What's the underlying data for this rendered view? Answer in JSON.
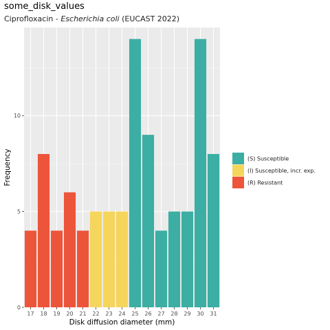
{
  "title": "some_disk_values",
  "subtitle": {
    "prefix": "Ciprofloxacin - ",
    "organism": "Escherichia coli",
    "suffix": " (EUCAST 2022)"
  },
  "chart_data": {
    "type": "bar",
    "xlabel": "Disk diffusion diameter (mm)",
    "ylabel": "Frequency",
    "categories": [
      "17",
      "18",
      "19",
      "20",
      "21",
      "22",
      "23",
      "24",
      "25",
      "26",
      "27",
      "28",
      "29",
      "30",
      "31"
    ],
    "values": [
      4,
      8,
      4,
      6,
      4,
      5,
      5,
      5,
      14,
      9,
      4,
      5,
      5,
      14,
      8
    ],
    "interpretation": [
      "R",
      "R",
      "R",
      "R",
      "R",
      "I",
      "I",
      "I",
      "S",
      "S",
      "S",
      "S",
      "S",
      "S",
      "S"
    ],
    "yticks": [
      0,
      5,
      10
    ],
    "ytick_labels": [
      "0",
      "5",
      "10"
    ],
    "ylim": [
      0,
      14.6
    ],
    "grid": true,
    "legend_position": "right",
    "legend": [
      {
        "key": "S",
        "label": "(S) Susceptible",
        "color": "#3CAEA3"
      },
      {
        "key": "I",
        "label": "(I) Susceptible, incr. exp.",
        "color": "#F6D55C"
      },
      {
        "key": "R",
        "label": "(R) Resistant",
        "color": "#ED553B"
      }
    ]
  }
}
